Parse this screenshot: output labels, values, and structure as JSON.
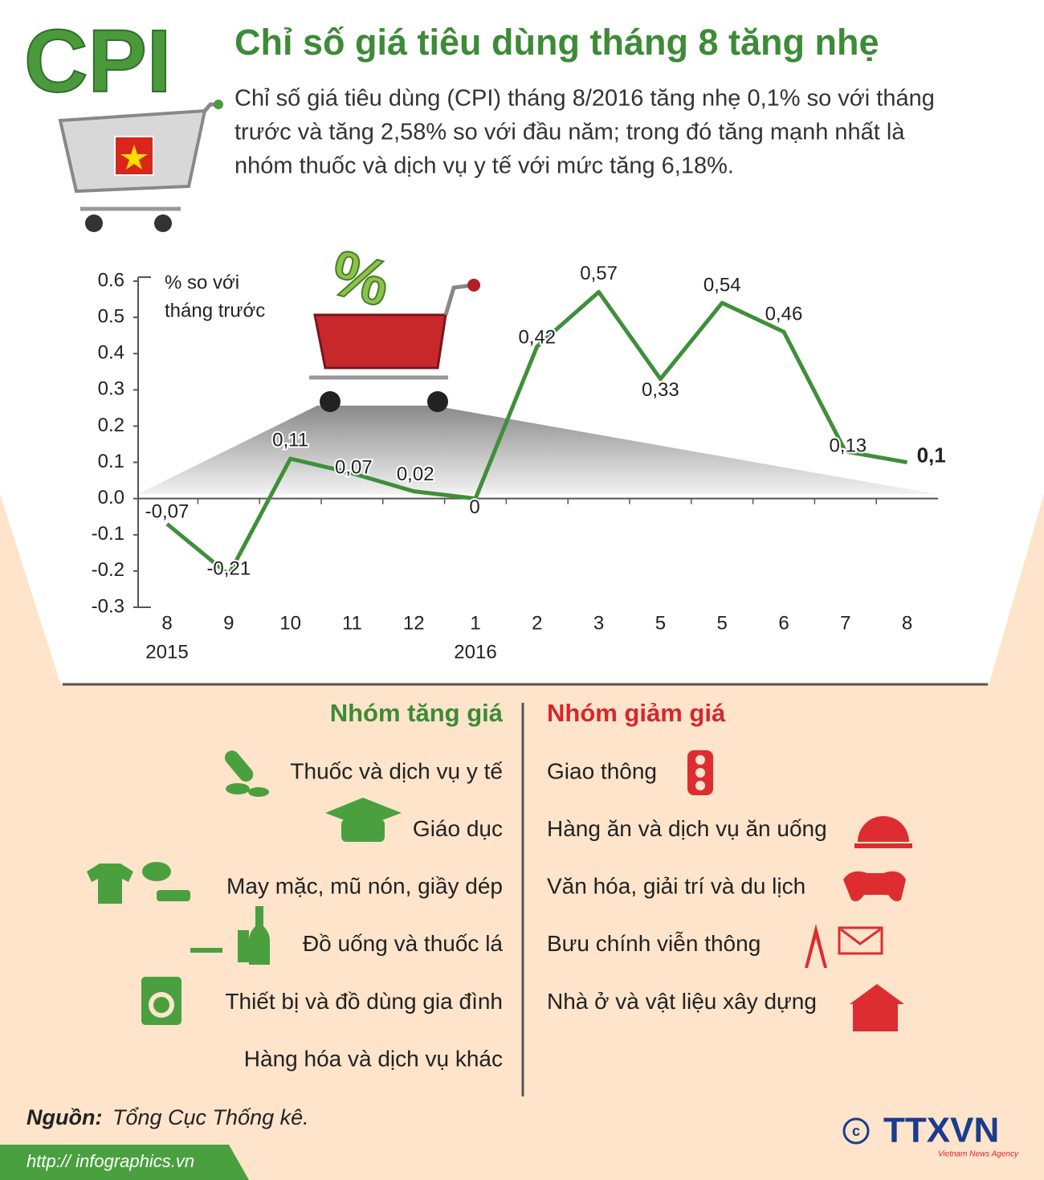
{
  "header": {
    "logo": "CPI",
    "title": "Chỉ số giá tiêu dùng tháng 8 tăng nhẹ",
    "description": [
      "Chỉ số giá tiêu dùng (CPI) tháng 8/2016 tăng nhẹ 0,1% so với tháng",
      "trước và tăng 2,58% so với đầu năm; trong đó tăng mạnh nhất là",
      "nhóm thuốc và dịch vụ y tế với mức tăng 6,18%."
    ]
  },
  "chart_data": {
    "type": "line",
    "y_label": [
      "% so với",
      "tháng trước"
    ],
    "categories": [
      "8",
      "9",
      "10",
      "11",
      "12",
      "1",
      "2",
      "3",
      "5",
      "5",
      "6",
      "7",
      "8"
    ],
    "years": [
      "2015",
      null,
      null,
      null,
      null,
      "2016",
      null,
      null,
      null,
      null,
      null,
      null,
      null
    ],
    "values": [
      -0.07,
      -0.21,
      0.11,
      0.07,
      0.02,
      0,
      0.42,
      0.57,
      0.33,
      0.54,
      0.46,
      0.13,
      0.1
    ],
    "value_labels": [
      "-0,07",
      "-0,21",
      "0,11",
      "0,07",
      "0,02",
      "0",
      "0,42",
      "0,57",
      "0,33",
      "0,54",
      "0,46",
      "0,13",
      "0,1"
    ],
    "color": "#3f8f3a",
    "ylim": [
      -0.3,
      0.6
    ],
    "yticks": [
      0.6,
      0.5,
      0.4,
      0.3,
      0.2,
      0.1,
      {
        "value": 0,
        "label": "0.0"
      },
      -0.1,
      -0.2,
      -0.3
    ]
  },
  "groups": {
    "increase": {
      "title": "Nhóm tăng giá",
      "items": [
        "Thuốc và dịch vụ y tế",
        "Giáo dục",
        "May mặc, mũ nón, giầy dép",
        "Đồ uống và thuốc lá",
        "Thiết bị và đồ dùng gia đình",
        "Hàng hóa và dịch vụ khác"
      ]
    },
    "decrease": {
      "title": "Nhóm giảm giá",
      "items": [
        "Giao thông",
        "Hàng ăn và dịch vụ ăn uống",
        "Văn hóa, giải trí và du lịch",
        "Bưu chính viễn thông",
        "Nhà ở và vật liệu xây dựng"
      ]
    }
  },
  "footer": {
    "source_label": "Nguồn:",
    "source": "Tổng Cục Thống kê.",
    "url": "http:// infographics.vn",
    "agency": "TTXVN",
    "agency_sub": "Vietnam News Agency"
  }
}
